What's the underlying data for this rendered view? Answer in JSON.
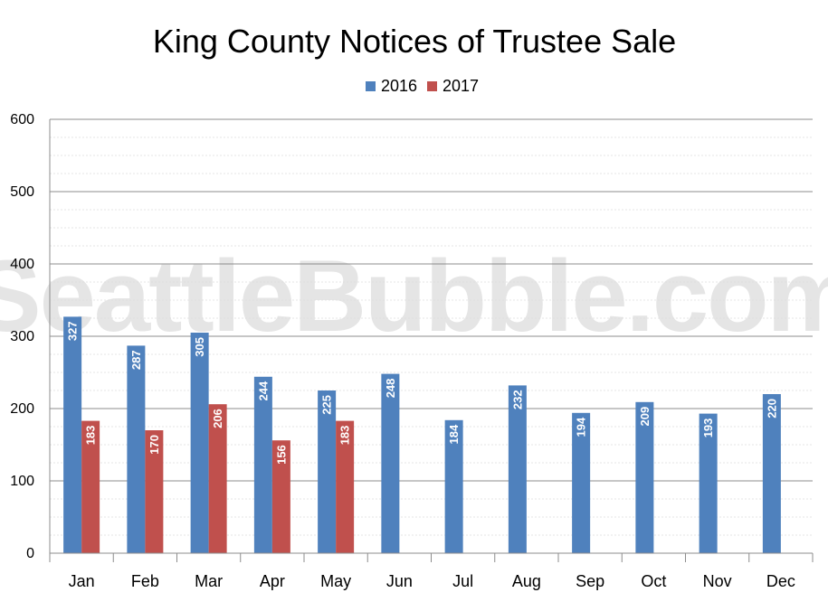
{
  "chart_data": {
    "type": "bar",
    "title": "King County Notices of Trustee Sale",
    "categories": [
      "Jan",
      "Feb",
      "Mar",
      "Apr",
      "May",
      "Jun",
      "Jul",
      "Aug",
      "Sep",
      "Oct",
      "Nov",
      "Dec"
    ],
    "series": [
      {
        "name": "2016",
        "color": "#4f81bd",
        "values": [
          327,
          287,
          305,
          244,
          225,
          248,
          184,
          232,
          194,
          209,
          193,
          220
        ]
      },
      {
        "name": "2017",
        "color": "#c0504d",
        "values": [
          183,
          170,
          206,
          156,
          183,
          null,
          null,
          null,
          null,
          null,
          null,
          null
        ]
      }
    ],
    "yticks": [
      0,
      100,
      200,
      300,
      400,
      500,
      600
    ],
    "ylim": [
      0,
      600
    ],
    "grid": true,
    "legend_position": "top-center",
    "data_labels": "inside-bar-vertical",
    "watermark": "SeattleBubble.com"
  }
}
